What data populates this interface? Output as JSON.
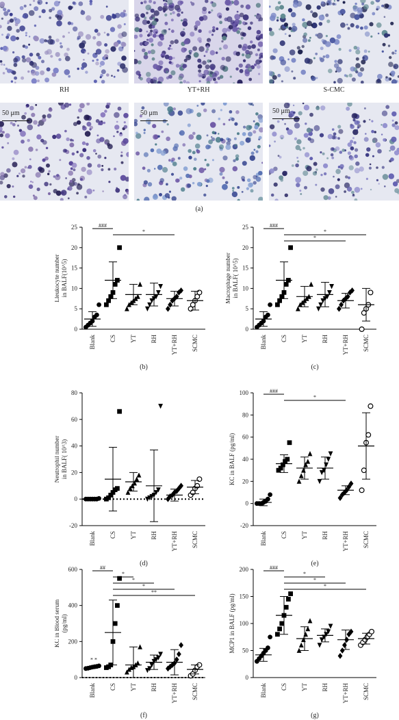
{
  "micrographs": {
    "labels": [
      "RH",
      "YT+RH",
      "S-CMC"
    ],
    "scale_bar": "50 μm",
    "panel": "(a)"
  },
  "chart_data": [
    {
      "panel": "(b)",
      "type": "scatter",
      "ylabel": [
        "Lleukocyte number",
        "in BALF(10^5)"
      ],
      "categories": [
        "Blank",
        "CS",
        "YT",
        "RH",
        "YT+RH",
        "SCMC"
      ],
      "markers": [
        "circle",
        "square",
        "triangle",
        "invtriangle",
        "diamond",
        "opencircle"
      ],
      "ylim": [
        0,
        25
      ],
      "yticks": [
        0,
        5,
        10,
        15,
        20,
        25
      ],
      "points": [
        [
          0.5,
          1,
          1.5,
          2,
          3,
          3.5,
          6
        ],
        [
          6,
          7,
          8,
          9,
          11,
          12,
          20
        ],
        [
          5,
          6,
          6.5,
          7,
          7.5,
          8,
          11
        ],
        [
          5,
          6,
          7,
          7.5,
          8,
          9,
          10.5
        ],
        [
          5,
          6,
          7,
          7.5,
          8,
          9,
          9.5
        ],
        [
          5,
          6,
          7,
          8,
          9
        ]
      ],
      "mean": [
        2.5,
        12,
        8.5,
        8.5,
        7.5,
        7
      ],
      "sd": [
        1.8,
        4.5,
        2.5,
        2.8,
        1.8,
        2.3
      ],
      "sig": [
        {
          "from": 0,
          "to": 1,
          "label": "###"
        },
        {
          "from": 1,
          "to": 4,
          "label": "*"
        }
      ],
      "dotted_zero": false
    },
    {
      "panel": "(c)",
      "type": "scatter",
      "ylabel": [
        "Macrophage number",
        "in BALF( 10^5)"
      ],
      "categories": [
        "Blank",
        "CS",
        "YT",
        "RH",
        "YT+RH",
        "SCMC"
      ],
      "markers": [
        "circle",
        "square",
        "triangle",
        "invtriangle",
        "diamond",
        "opencircle"
      ],
      "ylim": [
        0,
        25
      ],
      "yticks": [
        0,
        5,
        10,
        15,
        20,
        25
      ],
      "points": [
        [
          0.5,
          1,
          1.5,
          2,
          3,
          3.5,
          6
        ],
        [
          6,
          7,
          8,
          9,
          11,
          12,
          20
        ],
        [
          5,
          6,
          6.5,
          7,
          7.5,
          8,
          11
        ],
        [
          5,
          6,
          7,
          7.5,
          8,
          9,
          10.5
        ],
        [
          5,
          6,
          7,
          7.5,
          8,
          9,
          9.5
        ],
        [
          0,
          4,
          5,
          6,
          9
        ]
      ],
      "mean": [
        2.5,
        12,
        8,
        8.5,
        7,
        6
      ],
      "sd": [
        1.8,
        4.5,
        2.5,
        3,
        1.8,
        4
      ],
      "sig": [
        {
          "from": 0,
          "to": 1,
          "label": "###"
        },
        {
          "from": 1,
          "to": 5,
          "label": "*"
        },
        {
          "from": 1,
          "to": 4,
          "label": "*"
        }
      ],
      "dotted_zero": false
    },
    {
      "panel": "(d)",
      "type": "scatter",
      "ylabel": [
        "Neutrophil number",
        "in BALF( 10^3)"
      ],
      "categories": [
        "Blank",
        "CS",
        "YT",
        "RH",
        "YT+RH",
        "SCMC"
      ],
      "markers": [
        "circle",
        "square",
        "triangle",
        "invtriangle",
        "diamond",
        "opencircle"
      ],
      "ylim": [
        -20,
        80
      ],
      "yticks": [
        -20,
        0,
        20,
        40,
        60,
        80
      ],
      "points": [
        [
          0,
          0,
          0,
          0,
          0,
          0,
          0.5
        ],
        [
          0,
          1,
          3,
          5,
          7,
          8,
          66
        ],
        [
          5,
          8,
          10,
          12,
          15,
          18
        ],
        [
          0,
          1,
          2,
          3,
          5,
          7,
          70
        ],
        [
          0,
          2,
          3,
          5,
          6,
          8,
          10
        ],
        [
          3,
          5,
          8,
          10,
          15
        ]
      ],
      "mean": [
        0,
        15,
        13,
        10,
        3,
        9
      ],
      "sd": [
        0.5,
        24,
        7,
        27,
        4.5,
        5
      ],
      "sig": [],
      "dotted_zero": true
    },
    {
      "panel": "(e)",
      "type": "scatter",
      "ylabel": [
        "KC in BALF (pg/ml)"
      ],
      "categories": [
        "Blank",
        "CS",
        "YT",
        "RH",
        "YT+RH",
        "SCMC"
      ],
      "markers": [
        "circle",
        "square",
        "triangle",
        "invtriangle",
        "diamond",
        "opencircle"
      ],
      "ylim": [
        -20,
        100
      ],
      "yticks": [
        -20,
        0,
        20,
        40,
        60,
        80,
        100
      ],
      "points": [
        [
          0,
          0,
          0,
          1,
          2,
          4,
          8
        ],
        [
          30,
          32,
          35,
          38,
          40,
          55
        ],
        [
          20,
          25,
          30,
          35,
          38,
          45
        ],
        [
          20,
          28,
          30,
          35,
          40,
          45
        ],
        [
          5,
          8,
          10,
          12,
          15,
          18
        ],
        [
          12,
          30,
          55,
          62,
          88
        ]
      ],
      "mean": [
        1,
        36,
        32,
        32,
        12,
        52
      ],
      "sd": [
        3,
        8,
        10,
        10,
        4,
        30
      ],
      "sig": [
        {
          "from": 0,
          "to": 1,
          "label": "###"
        },
        {
          "from": 1,
          "to": 4,
          "label": "*"
        }
      ],
      "dotted_zero": false
    },
    {
      "panel": "(f)",
      "type": "scatter",
      "ylabel": [
        "KC in Blood serum",
        "(pg/ml)"
      ],
      "categories": [
        "Blank",
        "CS",
        "YT",
        "RH",
        "YT+RH",
        "SCMC"
      ],
      "markers": [
        "circle",
        "square",
        "triangle",
        "invtriangle",
        "diamond",
        "opencircle"
      ],
      "ylim": [
        0,
        600
      ],
      "yticks": [
        0,
        200,
        400,
        600
      ],
      "points": [
        [
          50,
          52,
          55,
          58,
          60,
          62,
          65
        ],
        [
          55,
          60,
          70,
          200,
          300,
          400,
          550
        ],
        [
          30,
          45,
          55,
          60,
          70,
          80,
          170
        ],
        [
          40,
          50,
          70,
          90,
          100,
          110,
          130
        ],
        [
          50,
          60,
          70,
          80,
          100,
          130,
          180
        ],
        [
          10,
          20,
          40,
          60,
          70
        ]
      ],
      "mean": [
        57,
        250,
        70,
        85,
        85,
        45
      ],
      "sd": [
        5,
        180,
        100,
        40,
        70,
        25
      ],
      "sig": [
        {
          "from": 0,
          "to": 1,
          "label": "##"
        },
        {
          "from": 1,
          "to": 2,
          "label": "*"
        },
        {
          "from": 1,
          "to": 3,
          "label": "*"
        },
        {
          "from": 1,
          "to": 4,
          "label": "*"
        },
        {
          "from": 1,
          "to": 5,
          "label": "**"
        }
      ],
      "note": "* *",
      "dotted_zero": true
    },
    {
      "panel": "(g)",
      "type": "scatter",
      "ylabel": [
        "MCP1 in BALF (pg/ml)"
      ],
      "categories": [
        "Blank",
        "CS",
        "YT",
        "RH",
        "YT+RH",
        "SCMC"
      ],
      "markers": [
        "circle",
        "square",
        "triangle",
        "invtriangle",
        "diamond",
        "opencircle"
      ],
      "ylim": [
        0,
        200
      ],
      "yticks": [
        0,
        50,
        100,
        150,
        200
      ],
      "points": [
        [
          30,
          35,
          40,
          45,
          50,
          55,
          75
        ],
        [
          80,
          90,
          100,
          115,
          130,
          145,
          155
        ],
        [
          50,
          60,
          70,
          80,
          90,
          105
        ],
        [
          60,
          70,
          75,
          80,
          85,
          95
        ],
        [
          40,
          50,
          60,
          70,
          80,
          85
        ],
        [
          60,
          65,
          70,
          75,
          80,
          85
        ]
      ],
      "mean": [
        42,
        115,
        72,
        78,
        70,
        72
      ],
      "sd": [
        12,
        35,
        22,
        12,
        18,
        10
      ],
      "sig": [
        {
          "from": 0,
          "to": 1,
          "label": "###"
        },
        {
          "from": 1,
          "to": 3,
          "label": "*"
        },
        {
          "from": 1,
          "to": 4,
          "label": "*"
        },
        {
          "from": 1,
          "to": 5,
          "label": "*"
        }
      ],
      "dotted_zero": false
    }
  ]
}
